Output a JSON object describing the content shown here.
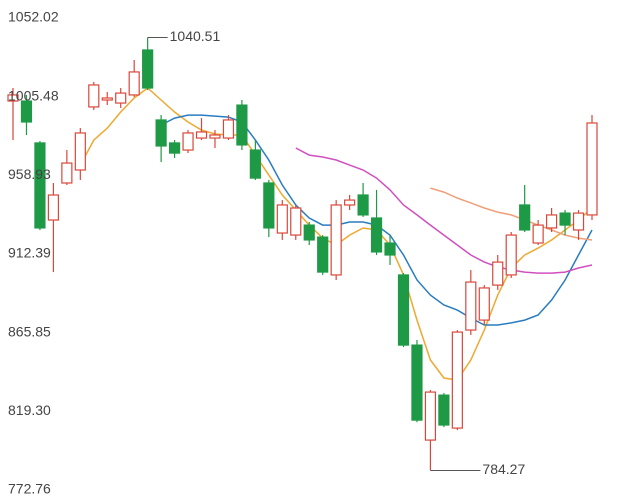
{
  "chart_data": {
    "type": "candlestick",
    "ylim": [
      772.76,
      1052.02
    ],
    "yticks": [
      1052.02,
      1005.48,
      958.93,
      912.39,
      865.85,
      {
        "value": 819.3,
        "label": "819.30"
      },
      772.76
    ],
    "grid": false,
    "up_color": "#d9473a",
    "down_color": "#1e9a46",
    "open": [
      1002.9,
      1002.9,
      978.1,
      932.5,
      954.4,
      962.1,
      999.4,
      1003.5,
      1001.7,
      1006.5,
      1033.1,
      991.7,
      978.1,
      973.9,
      981.0,
      981.0,
      981.0,
      1000.5,
      973.9,
      954.4,
      924.8,
      923.6,
      929.5,
      922.4,
      900.0,
      941.4,
      947.3,
      933.7,
      918.9,
      900.0,
      858.5,
      802.3,
      828.9,
      809.4,
      867.4,
      873.3,
      894.0,
      900.0,
      941.4,
      918.9,
      927.8,
      936.6,
      926.6,
      935.5
    ],
    "high": [
      1010.6,
      1006.5,
      979.2,
      954.4,
      973.9,
      986.9,
      1014.2,
      1008.2,
      1010.6,
      1027.2,
      1040.51,
      994.6,
      979.8,
      985.7,
      992.8,
      985.7,
      994.6,
      1003.5,
      979.8,
      956.2,
      944.3,
      941.4,
      931.3,
      923.6,
      944.3,
      947.3,
      954.4,
      950.3,
      923.6,
      901.1,
      861.5,
      831.9,
      830.1,
      867.4,
      902.9,
      894.0,
      911.8,
      925.4,
      953.2,
      932.5,
      939.6,
      938.4,
      938.4,
      994.6
    ],
    "low": [
      979.8,
      982.8,
      926.6,
      901.7,
      953.2,
      956.2,
      997.6,
      1000.5,
      998.8,
      1005.3,
      1009.4,
      966.8,
      969.2,
      972.1,
      979.8,
      975.1,
      979.8,
      973.9,
      956.2,
      922.4,
      920.7,
      920.7,
      917.7,
      900.0,
      897.0,
      938.4,
      934.3,
      911.8,
      905.9,
      857.3,
      812.9,
      784.27,
      810.0,
      808.2,
      864.5,
      870.4,
      891.1,
      898.2,
      925.4,
      917.7,
      925.4,
      923.6,
      920.7,
      932.5
    ],
    "close": [
      1006.5,
      990.5,
      927.8,
      947.3,
      966.2,
      984.0,
      1012.4,
      1004.7,
      1007.6,
      1020.1,
      1010.6,
      976.3,
      972.1,
      984.0,
      984.6,
      982.8,
      991.7,
      976.9,
      957.3,
      927.8,
      941.4,
      939.6,
      920.7,
      901.7,
      941.4,
      944.3,
      935.5,
      913.6,
      911.8,
      858.5,
      814.1,
      830.7,
      811.2,
      866.2,
      895.8,
      892.3,
      907.6,
      923.6,
      926.6,
      929.5,
      935.5,
      929.5,
      936.6,
      989.9
    ],
    "lines": [
      {
        "color": "#f0a830",
        "values": [
          null,
          null,
          null,
          null,
          null,
          965.0,
          979.8,
          986.9,
          996.4,
          1004.7,
          1010.6,
          1003.5,
          996.4,
          990.5,
          985.7,
          983.4,
          982.8,
          982.8,
          970.9,
          959.1,
          947.3,
          938.4,
          929.5,
          921.8,
          917.7,
          923.6,
          927.8,
          926.6,
          917.7,
          900.0,
          873.3,
          849.7,
          839.0,
          837.8,
          849.7,
          867.4,
          888.1,
          904.1,
          911.8,
          915.9,
          920.7,
          926.6,
          932.5,
          939.6
        ]
      },
      {
        "color": "#2a7cc0",
        "values": [
          null,
          null,
          null,
          null,
          null,
          null,
          null,
          null,
          null,
          null,
          null,
          988.7,
          992.8,
          994.6,
          994.6,
          994.0,
          993.4,
          990.5,
          979.8,
          968.0,
          953.2,
          941.4,
          933.7,
          929.5,
          929.5,
          931.3,
          931.3,
          929.5,
          923.6,
          911.8,
          897.0,
          888.1,
          882.2,
          879.2,
          874.5,
          870.4,
          870.4,
          871.6,
          873.3,
          876.3,
          885.2,
          897.0,
          911.8,
          926.6
        ]
      },
      {
        "color": "#d050c0",
        "values": [
          null,
          null,
          null,
          null,
          null,
          null,
          null,
          null,
          null,
          null,
          null,
          null,
          null,
          null,
          null,
          null,
          null,
          null,
          null,
          null,
          null,
          975.1,
          970.9,
          969.8,
          968.0,
          965.0,
          962.1,
          957.3,
          950.3,
          941.4,
          935.5,
          929.5,
          923.6,
          917.7,
          911.8,
          907.6,
          904.7,
          902.9,
          901.7,
          901.1,
          901.1,
          901.7,
          904.1,
          905.9
        ]
      },
      {
        "color": "#f0a078",
        "values": [
          null,
          null,
          null,
          null,
          null,
          null,
          null,
          null,
          null,
          null,
          null,
          null,
          null,
          null,
          null,
          null,
          null,
          null,
          null,
          null,
          null,
          null,
          null,
          null,
          null,
          null,
          null,
          null,
          null,
          null,
          null,
          951.4,
          949.0,
          945.5,
          942.6,
          939.6,
          937.2,
          935.5,
          932.5,
          929.5,
          926.6,
          923.6,
          921.8,
          920.7
        ]
      }
    ]
  }
}
